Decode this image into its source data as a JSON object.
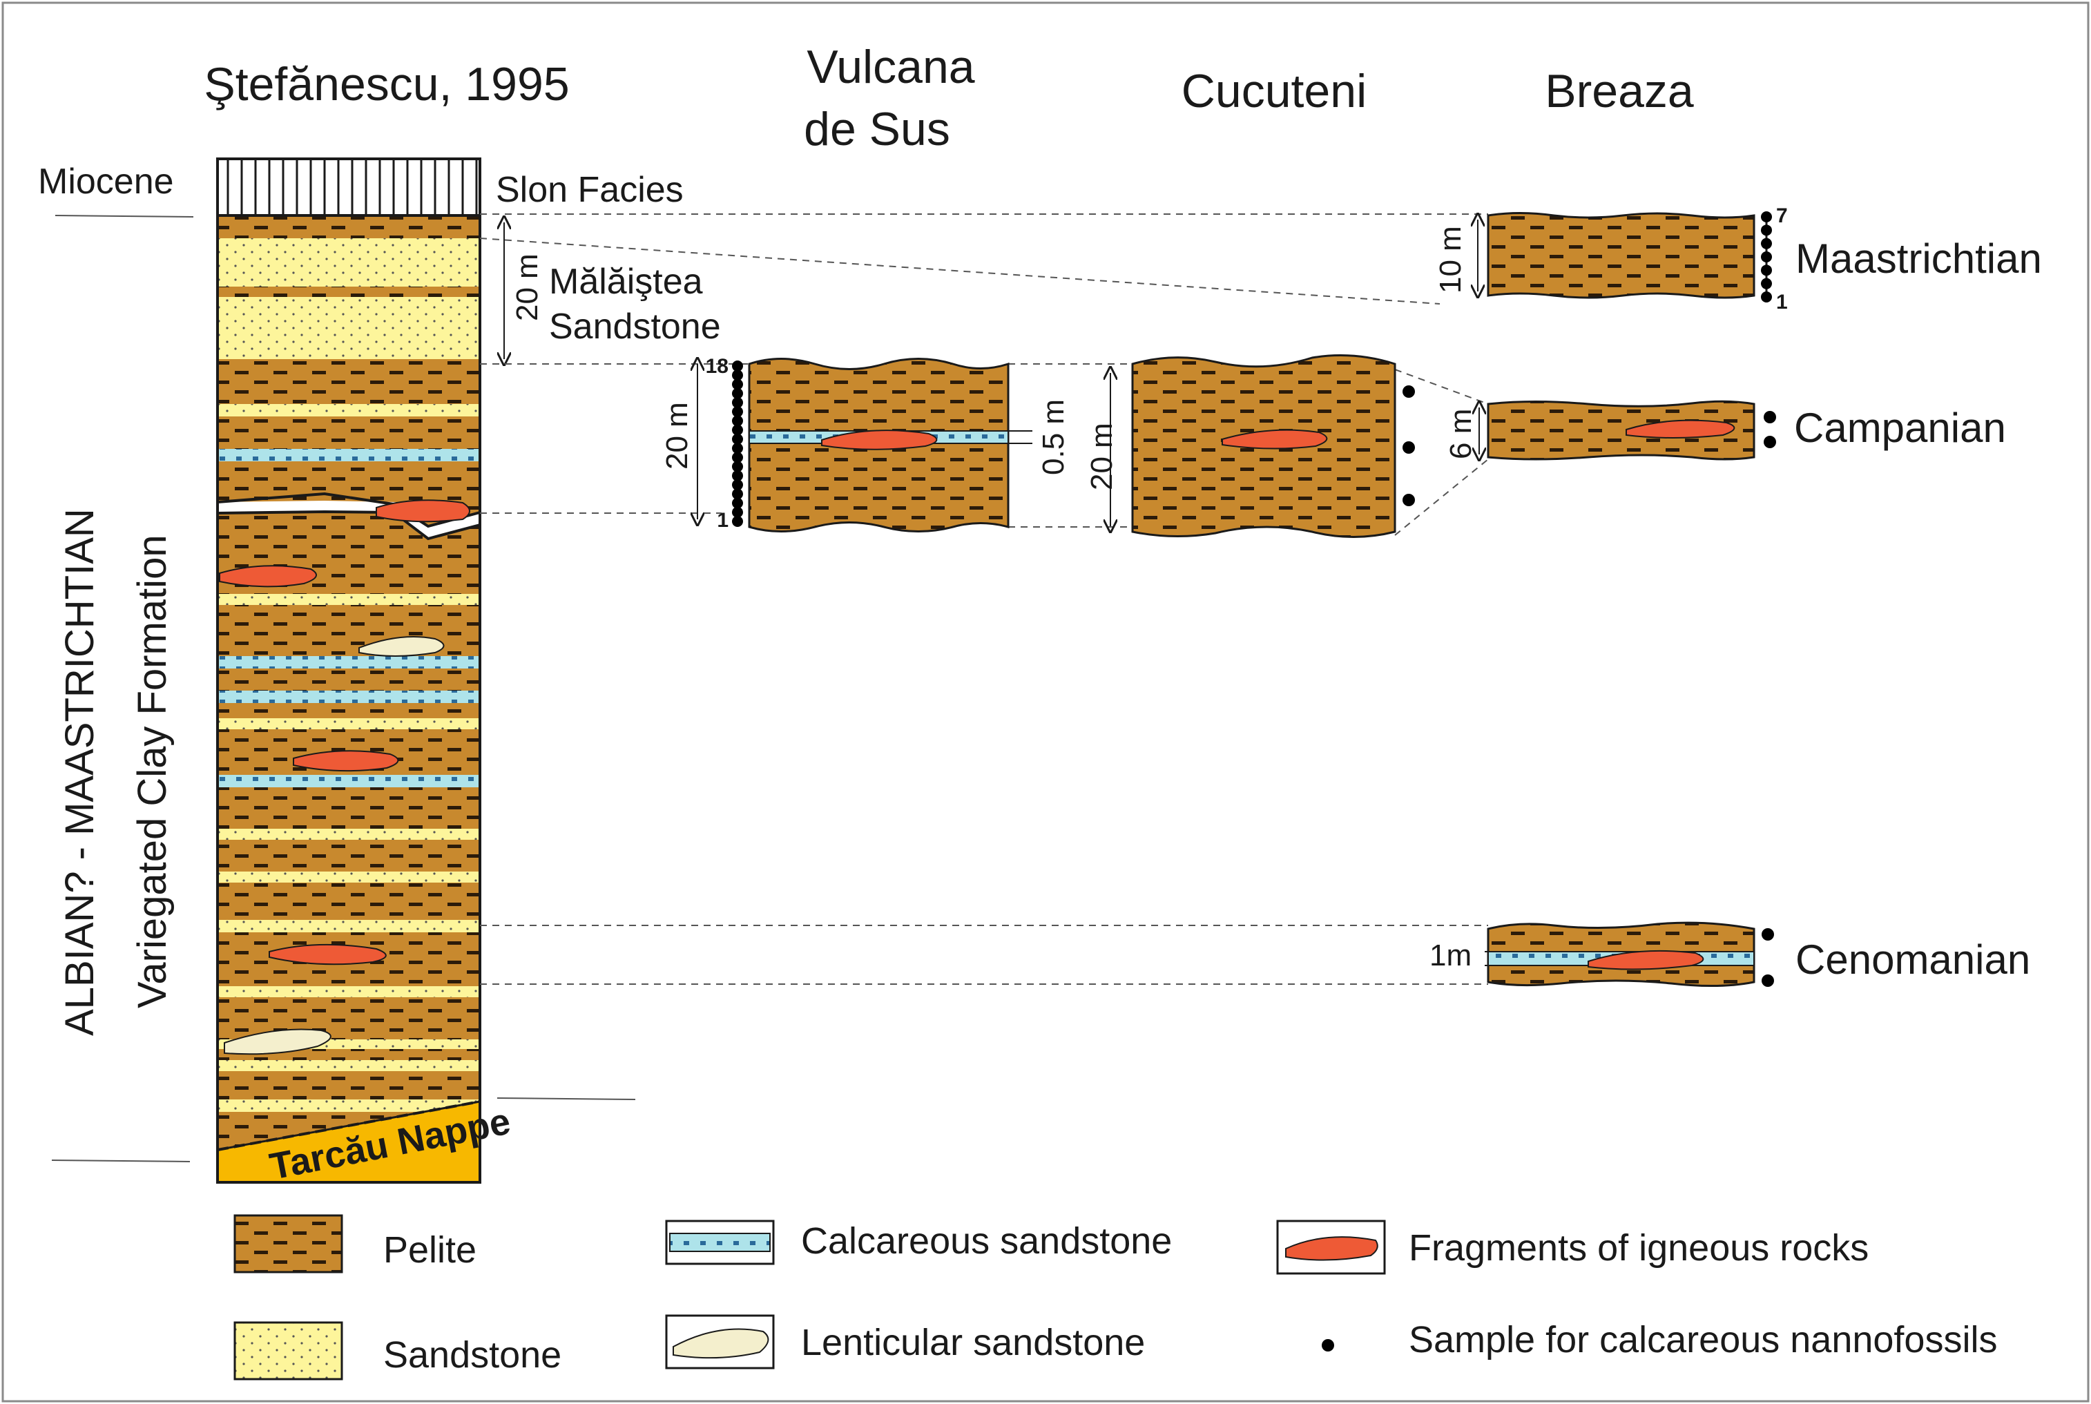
{
  "colors": {
    "pelite": "#c8892e",
    "pelite_dash": "#2b1b0a",
    "sandstone": "#fdf59b",
    "calc_sandstone": "#aee3ea",
    "igneous": "#ee5a36",
    "lenticular": "#f4efcd",
    "nappe": "#f7b800",
    "border": "#8a8a8a"
  },
  "columns": {
    "stefanescu": "Ştefănescu, 1995",
    "vulcana_line1": "Vulcana",
    "vulcana_line2": "de Sus",
    "cucuteni": "Cucuteni",
    "breaza": "Breaza"
  },
  "side_labels": {
    "age": "ALBIAN? - MAASTRICHTIAN",
    "formation": "Variegated Clay Formation"
  },
  "units": {
    "miocene": "Miocene",
    "slon_facies": "Slon Facies",
    "malaistea_line1": "Mălăiştea",
    "malaistea_line2": "Sandstone",
    "tarcau_nappe": "Tarcău Nappe"
  },
  "thicknesses": {
    "malaistea": "20 m",
    "vulcana": "20 m",
    "vulcana_bed": "0.5 m",
    "cucuteni": "20 m",
    "breaza_maastrichtian": "10 m",
    "breaza_campanian": "6 m",
    "breaza_cenomanian": "1m"
  },
  "sample_numbers": {
    "vulcana_top": "18",
    "vulcana_bottom": "1",
    "breaza_top": "7",
    "breaza_bottom": "1"
  },
  "stages": {
    "maastrichtian": "Maastrichtian",
    "campanian": "Campanian",
    "cenomanian": "Cenomanian"
  },
  "legend": {
    "pelite": "Pelite",
    "sandstone": "Sandstone",
    "calc_sandstone": "Calcareous sandstone",
    "lenticular": "Lenticular sandstone",
    "igneous": "Fragments of igneous rocks",
    "sample": "Sample for calcareous nannofossils"
  }
}
